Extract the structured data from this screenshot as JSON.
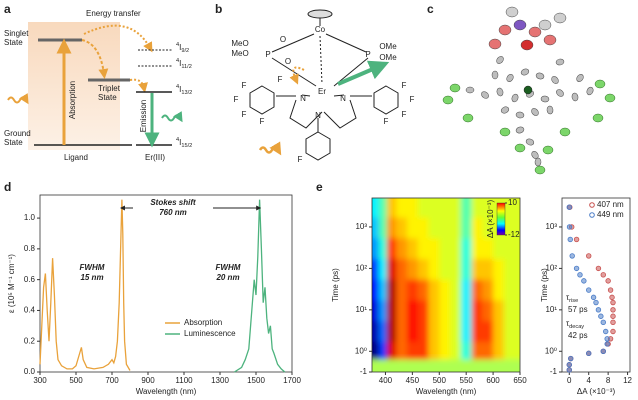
{
  "panels": {
    "a": {
      "label": "a",
      "energy_transfer": "Energy transfer",
      "singlet": [
        "Singlet",
        "State"
      ],
      "triplet": [
        "Triplet",
        "State"
      ],
      "ground": [
        "Ground",
        "State"
      ],
      "absorption": "Absorption",
      "emission": "Emission",
      "ligand": "Ligand",
      "erbium": "Er(III)",
      "levels": [
        {
          "sup": "4",
          "main": "I",
          "sub": "9/2"
        },
        {
          "sup": "4",
          "main": "I",
          "sub": "11/2"
        },
        {
          "sup": "4",
          "main": "I",
          "sub": "13/2"
        },
        {
          "sup": "4",
          "main": "I",
          "sub": "15/2"
        }
      ]
    },
    "b": {
      "label": "b",
      "atoms": [
        "Co",
        "MeO",
        "MeO",
        "P",
        "O",
        "O",
        "P",
        "OMe",
        "OMe",
        "Er",
        "N",
        "N",
        "N",
        "F",
        "F",
        "F",
        "F",
        "F",
        "F",
        "F",
        "F",
        "F",
        "F"
      ]
    },
    "c": {
      "label": "c"
    },
    "d": {
      "label": "d"
    },
    "e": {
      "label": "e"
    }
  },
  "chart_data": [
    {
      "type": "line",
      "xlabel": "Wavelength (nm)",
      "ylabel": "ε (10⁵ M⁻¹ cm⁻¹)",
      "xlim": [
        300,
        1700
      ],
      "xticks": [
        300,
        500,
        700,
        900,
        1100,
        1300,
        1500,
        1700
      ],
      "ylim": [
        0,
        1.15
      ],
      "yticks": [
        {
          "value": 0,
          "label": "0.0"
        },
        0.2,
        0.4,
        0.6,
        0.8,
        {
          "value": 1,
          "label": "1.0"
        }
      ],
      "annotations": {
        "stokes": "Stokes shift",
        "stokes_value": "760 nm",
        "fwhm_abs": "FWHM",
        "fwhm_abs_value": "15 nm",
        "fwhm_lum": "FWHM",
        "fwhm_lum_value": "20 nm"
      },
      "series": [
        {
          "name": "Absorption",
          "color": "#e9a23b",
          "x": [
            300,
            310,
            320,
            330,
            340,
            350,
            360,
            370,
            380,
            390,
            400,
            420,
            450,
            480,
            500,
            520,
            530,
            540,
            560,
            600,
            650,
            680,
            700,
            710,
            720,
            730,
            740,
            750,
            755,
            760,
            765,
            770,
            780,
            800
          ],
          "values": [
            0.05,
            0.3,
            0.55,
            0.64,
            0.4,
            0.2,
            0.45,
            0.74,
            0.5,
            0.2,
            0.08,
            0.04,
            0.02,
            0.02,
            0.04,
            0.12,
            0.16,
            0.08,
            0.03,
            0.02,
            0.03,
            0.05,
            0.08,
            0.06,
            0.1,
            0.2,
            0.45,
            0.9,
            1.12,
            0.9,
            0.45,
            0.2,
            0.05,
            0.01
          ]
        },
        {
          "name": "Luminescence",
          "color": "#4db37e",
          "x": [
            1380,
            1420,
            1440,
            1460,
            1470,
            1480,
            1490,
            1500,
            1510,
            1520,
            1530,
            1540,
            1550,
            1560,
            1570,
            1580,
            1590,
            1600,
            1620,
            1640,
            1660
          ],
          "values": [
            0,
            0.03,
            0.08,
            0.15,
            0.3,
            0.45,
            0.6,
            0.5,
            0.75,
            1.12,
            0.8,
            0.45,
            0.55,
            0.35,
            0.25,
            0.3,
            0.15,
            0.12,
            0.05,
            0.02,
            0
          ]
        }
      ]
    },
    {
      "type": "heatmap",
      "xlabel": "Wavelength (nm)",
      "ylabel": "Time (ps)",
      "xlim": [
        375,
        650
      ],
      "xticks": [
        400,
        450,
        500,
        550,
        600,
        650
      ],
      "ylim": [
        -1,
        5000
      ],
      "yscale": "symlog",
      "yticks": [
        -1,
        {
          "value": 1,
          "label": "10⁰"
        },
        {
          "value": 10,
          "label": "10¹"
        },
        {
          "value": 100,
          "label": "10²"
        },
        {
          "value": 1000,
          "label": "10³"
        }
      ],
      "colorbar": {
        "label": "ΔA (×10⁻³)",
        "ticks": [
          -12,
          10
        ]
      },
      "zlim": [
        -12,
        10
      ],
      "x": [
        380,
        395,
        410,
        430,
        450,
        470,
        490,
        510,
        530,
        550,
        570,
        590,
        610,
        630,
        645
      ],
      "y": [
        -0.5,
        1,
        3,
        10,
        30,
        100,
        300,
        1000,
        3000
      ],
      "z": [
        [
          0,
          0,
          0,
          0,
          0,
          0,
          0,
          0,
          0,
          0,
          0,
          0,
          0,
          0,
          0
        ],
        [
          -12,
          -8,
          8,
          5,
          6,
          6,
          3,
          2,
          1,
          -3,
          5,
          5,
          3,
          1,
          1
        ],
        [
          -11,
          -7,
          9,
          5,
          7,
          6,
          3,
          2,
          1,
          -4,
          6,
          6,
          3,
          1,
          1
        ],
        [
          -10,
          -6,
          9,
          5,
          7,
          6,
          3,
          2,
          1,
          -4,
          6,
          5,
          3,
          1,
          1
        ],
        [
          -9,
          -5,
          9,
          5,
          6,
          5,
          3,
          2,
          1,
          -4,
          5,
          4,
          2,
          1,
          1
        ],
        [
          -8,
          -4,
          8,
          5,
          4,
          3,
          2,
          1,
          1,
          -3,
          3,
          3,
          2,
          1,
          1
        ],
        [
          -6,
          -3,
          6,
          4,
          3,
          2,
          2,
          1,
          1,
          -3,
          2,
          2,
          1,
          1,
          1
        ],
        [
          -5,
          -2,
          4,
          3,
          2,
          2,
          1,
          1,
          1,
          -2,
          2,
          1,
          1,
          1,
          1
        ],
        [
          -4,
          -2,
          3,
          2,
          2,
          1,
          1,
          1,
          1,
          -2,
          1,
          1,
          1,
          1,
          1
        ]
      ]
    },
    {
      "type": "scatter",
      "xlabel": "ΔA (×10⁻³)",
      "ylabel": "Time (ps)",
      "xlim": [
        -1.5,
        12.5
      ],
      "xticks": [
        0,
        4,
        8,
        12
      ],
      "ylim": [
        -1,
        5000
      ],
      "yscale": "symlog",
      "yticks": [
        -1,
        {
          "value": 1,
          "label": "10⁰"
        },
        {
          "value": 10,
          "label": "10¹"
        },
        {
          "value": 100,
          "label": "10²"
        },
        {
          "value": 1000,
          "label": "10³"
        }
      ],
      "annotations": {
        "rise": {
          "main": "τ",
          "sub": "rise"
        },
        "rise_value": "57 ps",
        "decay": {
          "main": "τ",
          "sub": "decay"
        },
        "decay_value": "42 ps"
      },
      "series": [
        {
          "name": "407 nm",
          "color": "#c8504e",
          "x": [
            0,
            0,
            0.3,
            4,
            7,
            8,
            8.5,
            9,
            9,
            9,
            9,
            9,
            8.8,
            8.5,
            8,
            7,
            6,
            4,
            1.5,
            0.5,
            0.1
          ],
          "values": [
            -0.8,
            -0.3,
            0.3,
            0.8,
            1,
            1.5,
            2,
            3,
            5,
            7,
            10,
            15,
            20,
            30,
            50,
            70,
            100,
            200,
            500,
            1000,
            3000
          ]
        },
        {
          "name": "449 nm",
          "color": "#4a7cc7",
          "x": [
            0,
            0,
            0.3,
            4,
            7,
            7.8,
            7.8,
            7.5,
            7,
            6.5,
            6,
            5.5,
            5,
            4,
            3,
            2.2,
            1.5,
            0.6,
            0.2,
            0.05,
            0
          ],
          "values": [
            -0.8,
            -0.3,
            0.3,
            0.8,
            1,
            1.5,
            2,
            3,
            5,
            7,
            10,
            15,
            20,
            30,
            50,
            70,
            100,
            200,
            500,
            1000,
            3000
          ]
        }
      ]
    }
  ]
}
